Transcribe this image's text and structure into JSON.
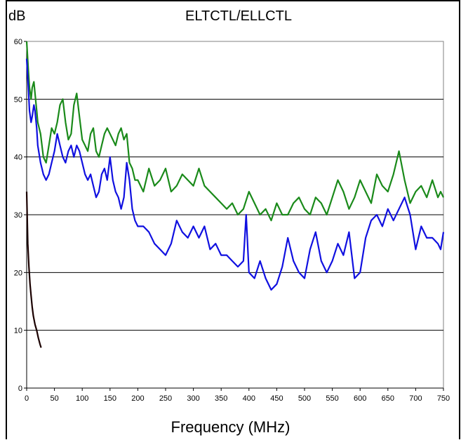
{
  "chart_data": {
    "type": "line",
    "title": "ELTCTL/ELLCTL",
    "ylabel": "dB",
    "xlabel": "Frequency (MHz)",
    "xlim": [
      0,
      750
    ],
    "ylim": [
      0,
      60
    ],
    "x_ticks": [
      0,
      50,
      100,
      150,
      200,
      250,
      300,
      350,
      400,
      450,
      500,
      550,
      600,
      650,
      700,
      750
    ],
    "y_ticks": [
      0,
      10,
      20,
      30,
      40,
      50,
      60
    ],
    "grid": "horizontal",
    "plot_background": "#ffffff",
    "series": [
      {
        "color": "#1a8a1a",
        "x": [
          0,
          3,
          5,
          8,
          10,
          13,
          15,
          18,
          20,
          25,
          30,
          35,
          40,
          45,
          50,
          55,
          60,
          65,
          70,
          75,
          80,
          85,
          90,
          95,
          100,
          105,
          110,
          115,
          120,
          125,
          130,
          135,
          140,
          145,
          150,
          155,
          160,
          165,
          170,
          175,
          180,
          185,
          190,
          195,
          200,
          210,
          220,
          230,
          240,
          250,
          260,
          270,
          280,
          290,
          300,
          310,
          320,
          330,
          340,
          350,
          360,
          370,
          380,
          390,
          400,
          410,
          420,
          430,
          440,
          450,
          460,
          470,
          480,
          490,
          500,
          510,
          520,
          530,
          540,
          550,
          560,
          570,
          580,
          590,
          600,
          610,
          620,
          630,
          640,
          650,
          660,
          670,
          680,
          690,
          700,
          710,
          720,
          730,
          740,
          745,
          750
        ],
        "y": [
          60,
          55,
          52,
          50,
          52,
          53,
          51,
          48,
          46,
          44,
          40,
          39,
          42,
          45,
          44,
          46,
          49,
          50,
          46,
          43,
          44,
          49,
          51,
          47,
          43,
          42,
          41,
          44,
          45,
          41,
          40,
          42,
          44,
          45,
          44,
          43,
          42,
          44,
          45,
          43,
          44,
          39,
          38,
          36,
          36,
          34,
          38,
          35,
          36,
          38,
          34,
          35,
          37,
          36,
          35,
          38,
          35,
          34,
          33,
          32,
          31,
          32,
          30,
          31,
          34,
          32,
          30,
          31,
          29,
          32,
          30,
          30,
          32,
          33,
          31,
          30,
          33,
          32,
          30,
          33,
          36,
          34,
          31,
          33,
          36,
          34,
          32,
          37,
          35,
          34,
          37,
          41,
          36,
          32,
          34,
          35,
          33,
          36,
          33,
          34,
          33
        ]
      },
      {
        "color": "#1010e0",
        "x": [
          0,
          3,
          5,
          8,
          10,
          13,
          15,
          18,
          20,
          25,
          30,
          35,
          40,
          45,
          50,
          55,
          60,
          65,
          70,
          75,
          80,
          85,
          90,
          95,
          100,
          105,
          110,
          115,
          120,
          125,
          130,
          135,
          140,
          145,
          150,
          155,
          160,
          165,
          170,
          175,
          180,
          185,
          190,
          195,
          200,
          210,
          220,
          230,
          240,
          250,
          260,
          270,
          280,
          290,
          300,
          310,
          320,
          330,
          340,
          350,
          360,
          370,
          380,
          390,
          395,
          400,
          410,
          420,
          430,
          440,
          450,
          460,
          470,
          480,
          490,
          500,
          510,
          520,
          530,
          540,
          550,
          560,
          570,
          580,
          590,
          600,
          610,
          620,
          630,
          640,
          650,
          660,
          670,
          680,
          690,
          700,
          710,
          720,
          730,
          740,
          745,
          750
        ],
        "y": [
          57,
          52,
          48,
          46,
          47,
          49,
          48,
          45,
          42,
          39,
          37,
          36,
          37,
          39,
          41,
          44,
          42,
          40,
          39,
          41,
          42,
          40,
          42,
          41,
          39,
          37,
          36,
          37,
          35,
          33,
          34,
          37,
          38,
          36,
          40,
          36,
          34,
          33,
          31,
          33,
          39,
          36,
          31,
          29,
          28,
          28,
          27,
          25,
          24,
          23,
          25,
          29,
          27,
          26,
          28,
          26,
          28,
          24,
          25,
          23,
          23,
          22,
          21,
          22,
          30,
          20,
          19,
          22,
          19,
          17,
          18,
          21,
          26,
          22,
          20,
          19,
          24,
          27,
          22,
          20,
          22,
          25,
          23,
          27,
          19,
          20,
          26,
          29,
          30,
          28,
          31,
          29,
          31,
          33,
          30,
          24,
          28,
          26,
          26,
          25,
          24,
          27
        ]
      },
      {
        "color": "#1a0000",
        "x": [
          0,
          2,
          4,
          6,
          8,
          10,
          12,
          15,
          18,
          21,
          24,
          26
        ],
        "y": [
          34,
          25,
          21,
          18,
          16,
          14,
          12.5,
          11,
          10,
          8.7,
          7.6,
          7
        ]
      }
    ]
  }
}
